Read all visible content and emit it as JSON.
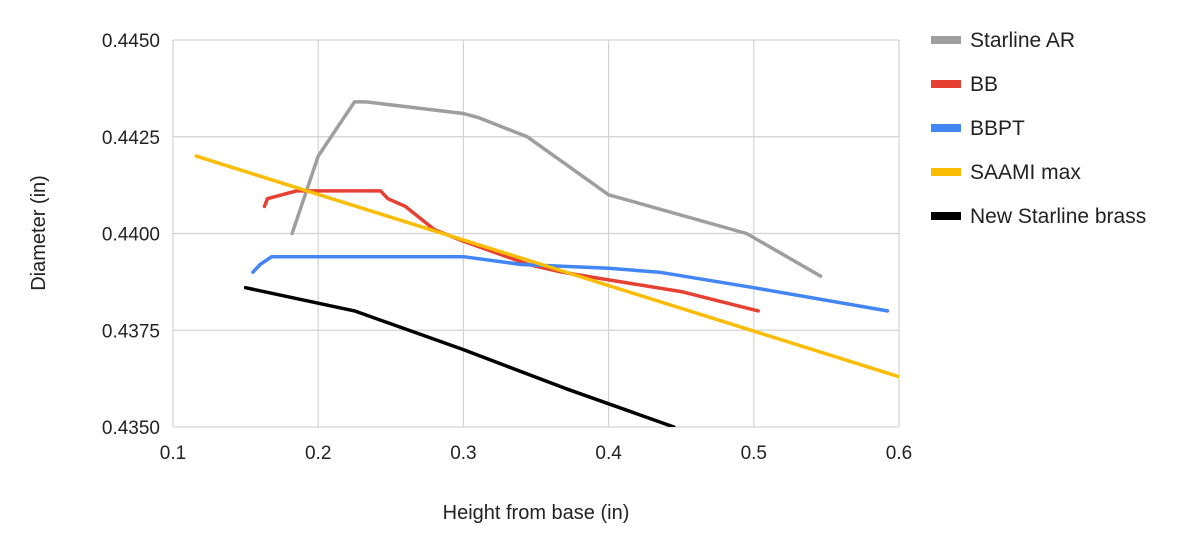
{
  "chart_data": {
    "type": "line",
    "title": "",
    "xlabel": "Height from base (in)",
    "ylabel": "Diameter (in)",
    "xlim": [
      0.1,
      0.6
    ],
    "ylim": [
      0.435,
      0.445
    ],
    "x_ticks": [
      0.1,
      0.2,
      0.3,
      0.4,
      0.5,
      0.6
    ],
    "x_tick_labels": [
      "0.1",
      "0.2",
      "0.3",
      "0.4",
      "0.5",
      "0.6"
    ],
    "y_ticks": [
      0.435,
      0.4375,
      0.44,
      0.4425,
      0.445
    ],
    "y_tick_labels": [
      "0.4350",
      "0.4375",
      "0.4400",
      "0.4425",
      "0.4450"
    ],
    "grid": true,
    "legend_position": "right",
    "series": [
      {
        "name": "Starline AR",
        "color": "#9e9e9e",
        "points": [
          [
            0.182,
            0.44
          ],
          [
            0.2,
            0.442
          ],
          [
            0.225,
            0.4434
          ],
          [
            0.233,
            0.4434
          ],
          [
            0.3,
            0.4431
          ],
          [
            0.31,
            0.443
          ],
          [
            0.344,
            0.4425
          ],
          [
            0.4,
            0.441
          ],
          [
            0.495,
            0.44
          ],
          [
            0.546,
            0.4389
          ]
        ]
      },
      {
        "name": "BB",
        "color": "#e64033",
        "points": [
          [
            0.163,
            0.4407
          ],
          [
            0.165,
            0.4409
          ],
          [
            0.185,
            0.4411
          ],
          [
            0.243,
            0.4411
          ],
          [
            0.248,
            0.4409
          ],
          [
            0.26,
            0.4407
          ],
          [
            0.28,
            0.4401
          ],
          [
            0.3,
            0.4398
          ],
          [
            0.345,
            0.4392
          ],
          [
            0.368,
            0.439
          ],
          [
            0.4,
            0.4388
          ],
          [
            0.45,
            0.4385
          ],
          [
            0.503,
            0.438
          ]
        ]
      },
      {
        "name": "BBPT",
        "color": "#4285f4",
        "points": [
          [
            0.155,
            0.439
          ],
          [
            0.16,
            0.4392
          ],
          [
            0.168,
            0.4394
          ],
          [
            0.3,
            0.4394
          ],
          [
            0.34,
            0.4392
          ],
          [
            0.4,
            0.4391
          ],
          [
            0.435,
            0.439
          ],
          [
            0.5,
            0.4386
          ],
          [
            0.592,
            0.438
          ]
        ]
      },
      {
        "name": "SAAMI max",
        "color": "#fbbc04",
        "points": [
          [
            0.116,
            0.442
          ],
          [
            0.6,
            0.4363
          ]
        ]
      },
      {
        "name": "New Starline brass",
        "color": "#000000",
        "points": [
          [
            0.15,
            0.4386
          ],
          [
            0.225,
            0.438
          ],
          [
            0.3,
            0.437
          ],
          [
            0.37,
            0.436
          ],
          [
            0.445,
            0.435
          ]
        ]
      }
    ]
  }
}
